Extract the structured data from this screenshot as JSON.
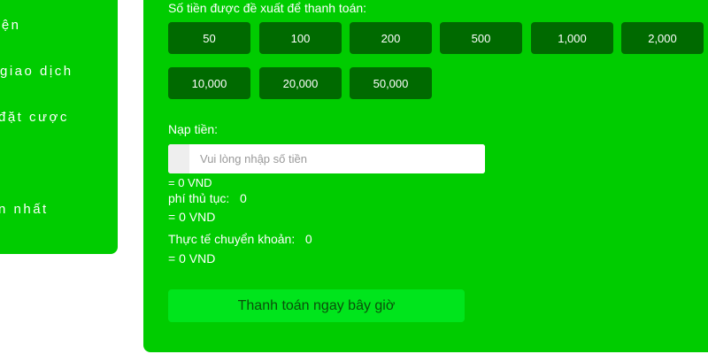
{
  "sidebar": {
    "items": [
      {
        "label": "iện"
      },
      {
        "label": "giao dịch"
      },
      {
        "label": "đặt cược"
      },
      {
        "label": "n nhất"
      }
    ]
  },
  "main": {
    "suggest_title": "Số tiền được đề xuất để thanh toán:",
    "amounts": [
      "50",
      "100",
      "200",
      "500",
      "1,000",
      "2,000",
      "10,000",
      "20,000",
      "50,000"
    ],
    "deposit_label": "Nạp tiền:",
    "deposit_placeholder": "Vui lòng nhập số tiền",
    "deposit_vnd": "= 0 VND",
    "fee_label": "phí thủ tục:",
    "fee_value": "0",
    "fee_vnd": "= 0 VND",
    "actual_label": "Thực tế chuyển khoản:",
    "actual_value": "0",
    "actual_vnd": "= 0 VND",
    "pay_button": "Thanh toán ngay bây giờ"
  },
  "colors": {
    "panel": "#00cc00",
    "amount_button": "#006a00",
    "pay_button": "#00e51c"
  }
}
